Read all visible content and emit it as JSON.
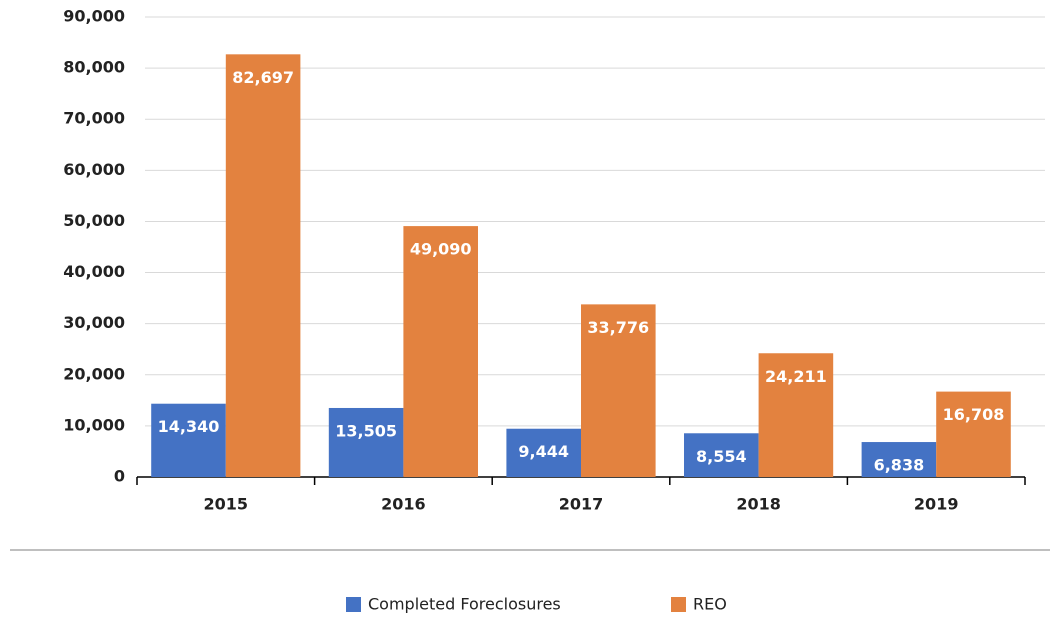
{
  "chart_data": {
    "type": "bar",
    "categories": [
      "2015",
      "2016",
      "2017",
      "2018",
      "2019"
    ],
    "series": [
      {
        "name": "Completed Foreclosures",
        "color": "#4472c4",
        "values": [
          14340,
          13505,
          9444,
          8554,
          6838
        ],
        "value_labels": [
          "14,340",
          "13,505",
          "9,444",
          "8,554",
          "6,838"
        ]
      },
      {
        "name": "REO",
        "color": "#e3823f",
        "values": [
          82697,
          49090,
          33776,
          24211,
          16708
        ],
        "value_labels": [
          "82,697",
          "49,090",
          "33,776",
          "24,211",
          "16,708"
        ]
      }
    ],
    "ylim": [
      0,
      90000
    ],
    "yticks": [
      0,
      {
        "value": 10000,
        "label": "10,000"
      },
      {
        "value": 20000,
        "label": "20,000"
      },
      {
        "value": 30000,
        "label": "30,000"
      },
      {
        "value": 40000,
        "label": "40,000"
      },
      {
        "value": 50000,
        "label": "50,000"
      },
      {
        "value": 60000,
        "label": "60,000"
      },
      {
        "value": 70000,
        "label": "70,000"
      },
      {
        "value": 80000,
        "label": "80,000"
      },
      {
        "value": 90000,
        "label": "90,000"
      }
    ],
    "grid": true,
    "legend": "bottom"
  }
}
